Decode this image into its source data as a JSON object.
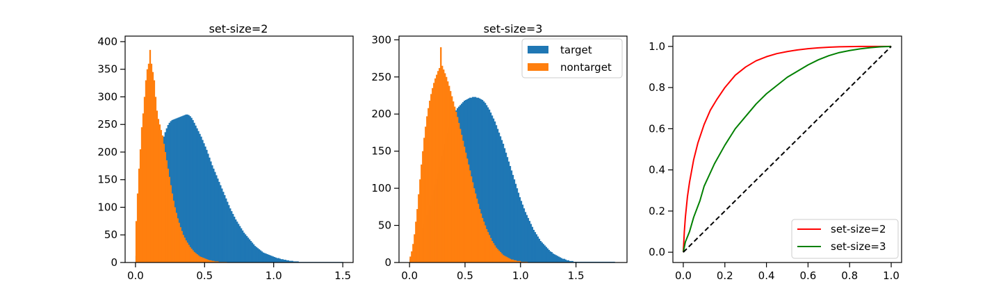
{
  "figure": {
    "colors": {
      "target": "#1f77b4",
      "nontarget": "#ff7f0e",
      "roc_ss2": "#ff0000",
      "roc_ss3": "#008000",
      "diagonal": "#000000"
    }
  },
  "chart_data": [
    {
      "type": "bar",
      "subtype": "histogram",
      "title": "set-size=2",
      "xlabel": "",
      "ylabel": "",
      "xlim": [
        -0.075,
        1.575
      ],
      "ylim": [
        0,
        410
      ],
      "xticks": [
        0.0,
        0.5,
        1.0,
        1.5
      ],
      "xtick_labels": [
        "0.0",
        "0.5",
        "1.0",
        "1.5"
      ],
      "yticks": [
        0,
        50,
        100,
        150,
        200,
        250,
        300,
        350,
        400
      ],
      "ytick_labels": [
        "0",
        "50",
        "100",
        "150",
        "200",
        "250",
        "300",
        "350",
        "400"
      ],
      "legend": null,
      "series": [
        {
          "name": "target",
          "color": "#1f77b4",
          "bin_start": 0.0,
          "bin_width": 0.01,
          "values": [
            12,
            18,
            25,
            33,
            42,
            52,
            62,
            74,
            86,
            98,
            110,
            122,
            135,
            148,
            160,
            172,
            184,
            196,
            207,
            218,
            228,
            236,
            243,
            249,
            253,
            256,
            258,
            259,
            260,
            261,
            262,
            263,
            264,
            265,
            266,
            267,
            268,
            268,
            267,
            265,
            262,
            258,
            253,
            248,
            243,
            238,
            233,
            228,
            222,
            216,
            210,
            204,
            197,
            190,
            183,
            176,
            170,
            164,
            158,
            152,
            146,
            140,
            134,
            128,
            122,
            116,
            110,
            104,
            98,
            93,
            88,
            83,
            78,
            74,
            70,
            66,
            62,
            58,
            54,
            51,
            48,
            45,
            42,
            39,
            36,
            33,
            30,
            28,
            26,
            24,
            22,
            20,
            18,
            17,
            16,
            15,
            14,
            13,
            12,
            11,
            10,
            9,
            8,
            8,
            7,
            6,
            6,
            5,
            5,
            4,
            4,
            3,
            3,
            3,
            2,
            2,
            2,
            2,
            1,
            1,
            1,
            1,
            1,
            1,
            1,
            1,
            1,
            1,
            1,
            1,
            1,
            1,
            1,
            1,
            1,
            1,
            1,
            1,
            1,
            1,
            1,
            1,
            1,
            1,
            1,
            1,
            1,
            1,
            1,
            1
          ]
        },
        {
          "name": "nontarget",
          "color": "#ff7f0e",
          "bin_start": 0.0,
          "bin_width": 0.01,
          "values": [
            75,
            125,
            170,
            205,
            245,
            270,
            300,
            330,
            350,
            360,
            385,
            360,
            345,
            330,
            300,
            275,
            260,
            250,
            240,
            230,
            215,
            200,
            185,
            170,
            155,
            140,
            125,
            112,
            100,
            90,
            80,
            72,
            64,
            57,
            50,
            45,
            40,
            36,
            32,
            28,
            25,
            22,
            19,
            17,
            15,
            13,
            11,
            10,
            9,
            8,
            7,
            6,
            5,
            4,
            4,
            3,
            3,
            2,
            2,
            2,
            1,
            1,
            1,
            1,
            1,
            1
          ]
        }
      ]
    },
    {
      "type": "bar",
      "subtype": "histogram",
      "title": "set-size=3",
      "xlabel": "",
      "ylabel": "",
      "xlim": [
        -0.095,
        1.96
      ],
      "ylim": [
        0,
        305
      ],
      "xticks": [
        0.0,
        0.5,
        1.0,
        1.5
      ],
      "xtick_labels": [
        "0.0",
        "0.5",
        "1.0",
        "1.5"
      ],
      "yticks": [
        0,
        50,
        100,
        150,
        200,
        250,
        300
      ],
      "ytick_labels": [
        "0",
        "50",
        "100",
        "150",
        "200",
        "250",
        "300"
      ],
      "legend": {
        "placement": "upper right",
        "entries": [
          "target",
          "nontarget"
        ]
      },
      "series": [
        {
          "name": "target",
          "color": "#1f77b4",
          "bin_start": 0.0,
          "bin_width": 0.0125,
          "values": [
            5,
            8,
            12,
            16,
            20,
            25,
            30,
            35,
            40,
            46,
            52,
            58,
            64,
            70,
            77,
            84,
            91,
            98,
            105,
            112,
            120,
            128,
            136,
            144,
            152,
            160,
            168,
            175,
            182,
            188,
            193,
            198,
            202,
            205,
            208,
            210,
            212,
            214,
            216,
            218,
            219,
            220,
            221,
            222,
            222,
            223,
            223,
            223,
            222,
            222,
            221,
            220,
            219,
            217,
            215,
            212,
            209,
            206,
            202,
            198,
            194,
            190,
            185,
            180,
            175,
            170,
            165,
            160,
            154,
            148,
            142,
            136,
            130,
            124,
            118,
            112,
            106,
            100,
            94,
            88,
            83,
            78,
            73,
            68,
            64,
            60,
            56,
            52,
            48,
            44,
            41,
            38,
            35,
            32,
            29,
            27,
            25,
            23,
            21,
            19,
            17,
            15,
            14,
            12,
            11,
            10,
            9,
            8,
            7,
            6,
            5,
            5,
            4,
            3,
            3,
            2,
            2,
            2,
            1,
            1,
            1,
            1,
            1,
            1,
            1,
            1,
            1,
            1,
            1,
            1,
            1,
            1,
            1,
            1,
            1,
            1,
            1,
            1,
            1,
            1,
            1,
            1,
            1,
            1,
            1,
            1,
            1,
            1
          ]
        },
        {
          "name": "nontarget",
          "color": "#ff7f0e",
          "bin_start": 0.0,
          "bin_width": 0.0125,
          "values": [
            8,
            15,
            25,
            38,
            55,
            72,
            92,
            112,
            132,
            150,
            168,
            183,
            197,
            208,
            218,
            227,
            235,
            242,
            248,
            253,
            258,
            262,
            290,
            265,
            260,
            255,
            250,
            244,
            238,
            231,
            224,
            217,
            210,
            203,
            196,
            188,
            180,
            172,
            164,
            156,
            148,
            140,
            132,
            124,
            116,
            108,
            100,
            93,
            86,
            79,
            72,
            66,
            60,
            55,
            50,
            45,
            41,
            37,
            33,
            29,
            26,
            23,
            20,
            18,
            16,
            14,
            12,
            10,
            9,
            8,
            7,
            6,
            5,
            4,
            4,
            3,
            3,
            2,
            2,
            2,
            1,
            1,
            1,
            1,
            1
          ]
        }
      ]
    },
    {
      "type": "line",
      "title": "",
      "xlabel": "",
      "ylabel": "",
      "xlim": [
        -0.05,
        1.05
      ],
      "ylim": [
        -0.05,
        1.05
      ],
      "xticks": [
        0.0,
        0.2,
        0.4,
        0.6,
        0.8,
        1.0
      ],
      "xtick_labels": [
        "0.0",
        "0.2",
        "0.4",
        "0.6",
        "0.8",
        "1.0"
      ],
      "yticks": [
        0.0,
        0.2,
        0.4,
        0.6,
        0.8,
        1.0
      ],
      "ytick_labels": [
        "0.0",
        "0.2",
        "0.4",
        "0.6",
        "0.8",
        "1.0"
      ],
      "legend": {
        "placement": "lower right",
        "entries": [
          "set-size=2",
          "set-size=3"
        ]
      },
      "series": [
        {
          "name": "set-size=2",
          "color": "#ff0000",
          "style": "solid",
          "x": [
            0.0,
            0.005,
            0.01,
            0.02,
            0.03,
            0.05,
            0.07,
            0.1,
            0.13,
            0.16,
            0.2,
            0.25,
            0.3,
            0.35,
            0.4,
            0.45,
            0.5,
            0.55,
            0.6,
            0.65,
            0.7,
            0.75,
            0.8,
            0.85,
            0.9,
            0.95,
            1.0
          ],
          "y": [
            0.0,
            0.1,
            0.17,
            0.27,
            0.34,
            0.45,
            0.53,
            0.62,
            0.69,
            0.74,
            0.8,
            0.86,
            0.9,
            0.93,
            0.95,
            0.965,
            0.975,
            0.983,
            0.989,
            0.993,
            0.996,
            0.998,
            0.999,
            1.0,
            1.0,
            1.0,
            1.0
          ]
        },
        {
          "name": "set-size=3",
          "color": "#008000",
          "style": "solid",
          "x": [
            0.0,
            0.01,
            0.03,
            0.05,
            0.08,
            0.1,
            0.15,
            0.2,
            0.25,
            0.3,
            0.35,
            0.4,
            0.45,
            0.5,
            0.55,
            0.6,
            0.65,
            0.7,
            0.75,
            0.8,
            0.85,
            0.9,
            0.95,
            1.0
          ],
          "y": [
            0.0,
            0.05,
            0.1,
            0.17,
            0.25,
            0.32,
            0.43,
            0.52,
            0.6,
            0.66,
            0.72,
            0.77,
            0.81,
            0.85,
            0.88,
            0.91,
            0.935,
            0.955,
            0.97,
            0.98,
            0.988,
            0.994,
            0.998,
            1.0
          ]
        },
        {
          "name": "",
          "color": "#000000",
          "style": "dashed",
          "x": [
            0.0,
            1.0
          ],
          "y": [
            0.0,
            1.0
          ]
        }
      ]
    }
  ]
}
